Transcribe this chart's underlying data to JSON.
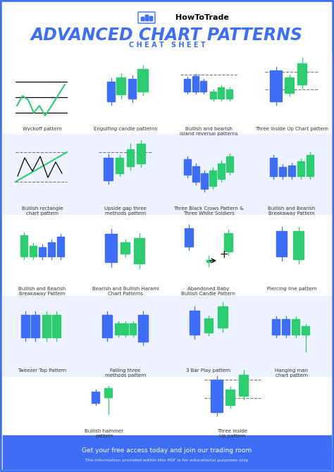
{
  "title": "ADVANCED CHART PATTERNS",
  "subtitle": "C H E A T   S H E E T",
  "logo_text": "HowToTrade",
  "footer": "Get your free access today and join our trading room",
  "footer_sub": "The information provided within this PDF is for educational purposes only",
  "bg_color": "#ffffff",
  "border_color": "#3d6ef5",
  "footer_bg": "#3d6ef5",
  "title_color": "#3d6ef5",
  "subtitle_color": "#3d6ef5",
  "blue_candle": "#3d6ef5",
  "green_candle": "#2ecc71",
  "row_bg_1": "#eef2ff",
  "row_bg_2": "#ffffff",
  "patterns": [
    {
      "name": "Wyckoff pattern"
    },
    {
      "name": "Engulfing candle patterns"
    },
    {
      "name": "Bullish and bearish\nisland reversal patterns"
    },
    {
      "name": "Three Inside Up Chart pattern"
    },
    {
      "name": "Bullish rectangle\nchart pattern"
    },
    {
      "name": "Upside gap three\nmethods pattern"
    },
    {
      "name": "Three Black Crows Pattern &\nThree White Soldiers"
    },
    {
      "name": "Bullish and Bearish\nBreakaway Pattern"
    },
    {
      "name": "Bullish and Bearish\nBreakaway Pattern"
    },
    {
      "name": "Bearish and Bullish Harami\nChart Patterns"
    },
    {
      "name": "Abandoned Baby\nBullish Candle Pattern"
    },
    {
      "name": "Piercing line pattern"
    },
    {
      "name": "Tweezer Top Pattern"
    },
    {
      "name": "Falling three\nmethods pattern"
    },
    {
      "name": "3 Bar Play pattern"
    },
    {
      "name": "Hanging man\nchart pattern"
    },
    {
      "name": "Bullish hammer\npattern"
    },
    {
      "name": "Three Inside\nUp pattern"
    }
  ]
}
